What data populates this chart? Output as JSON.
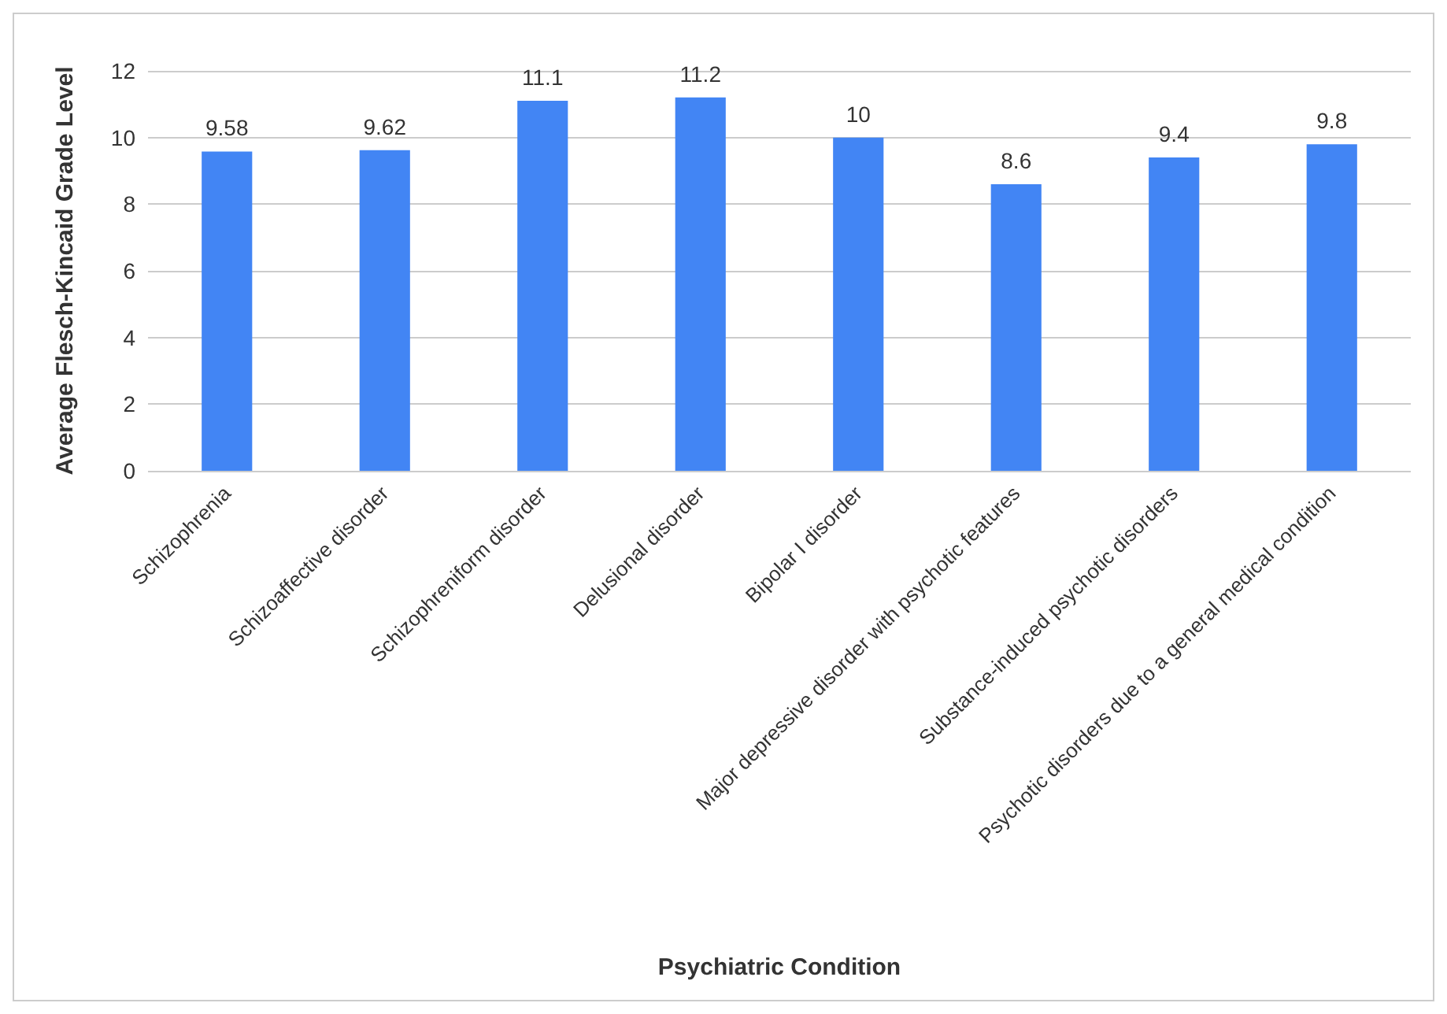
{
  "chart_data": {
    "type": "bar",
    "xlabel": "Psychiatric Condition",
    "ylabel": "Average Flesch-Kincaid Grade Level",
    "categories": [
      "Schizophrenia",
      "Schizoaffective disorder",
      "Schizophreniform disorder",
      "Delusional disorder",
      "Bipolar I disorder",
      "Major depressive disorder with psychotic features",
      "Substance-induced psychotic disorders",
      "Psychotic disorders due to a general medical condition"
    ],
    "values": [
      9.58,
      9.62,
      11.1,
      11.2,
      10,
      8.6,
      9.4,
      9.8
    ],
    "color": "#4285f4",
    "ylim": [
      0,
      12
    ],
    "yticks": [
      0,
      2,
      4,
      6,
      8,
      10,
      12
    ],
    "grid": "y",
    "data_labels": true
  }
}
